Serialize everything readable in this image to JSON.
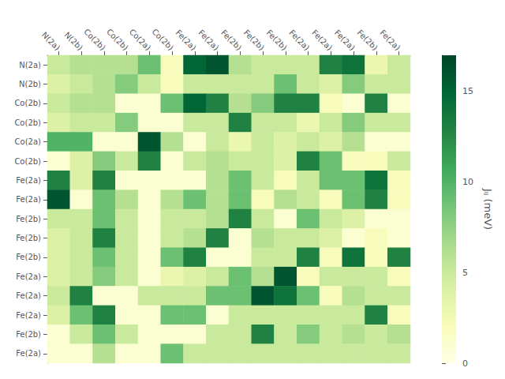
{
  "chart_data": {
    "type": "heatmap",
    "row_labels": [
      "N(2a)",
      "N(2b)",
      "Co(2b)",
      "Co(2b)",
      "Co(2a)",
      "Co(2b)",
      "Fe(2a)",
      "Fe(2a)",
      "Fe(2b)",
      "Fe(2b)",
      "Fe(2b)",
      "Fe(2a)",
      "Fe(2a)",
      "Fe(2a)",
      "Fe(2b)",
      "Fe(2a)"
    ],
    "col_labels": [
      "N(2a)",
      "N(2b)",
      "Co(2b)",
      "Co(2b)",
      "Co(2a)",
      "Co(2b)",
      "Fe(2a)",
      "Fe(2a)",
      "Fe(2b)",
      "Fe(2b)",
      "Fe(2b)",
      "Fe(2a)",
      "Fe(2a)",
      "Fe(2a)",
      "Fe(2b)",
      "Fe(2a)"
    ],
    "matrix": [
      [
        5,
        6,
        6,
        6,
        9,
        2,
        15,
        16,
        6,
        5,
        5,
        5,
        13,
        14,
        3,
        5
      ],
      [
        4,
        5,
        6,
        8,
        5,
        2,
        5,
        5,
        5,
        5,
        9,
        5,
        4,
        8,
        5,
        5
      ],
      [
        5,
        6,
        6,
        1,
        1,
        9,
        15,
        13,
        6,
        8,
        13,
        13,
        2,
        1,
        13,
        1
      ],
      [
        4,
        5,
        5,
        8,
        1,
        1,
        5,
        5,
        13,
        5,
        5,
        3,
        5,
        8,
        5,
        5
      ],
      [
        10,
        10,
        1,
        1,
        16,
        6,
        1,
        5,
        3,
        5,
        4,
        5,
        4,
        6,
        1,
        1
      ],
      [
        1,
        4,
        8,
        5,
        13,
        1,
        5,
        6,
        5,
        5,
        4,
        13,
        9,
        2,
        2,
        5
      ],
      [
        13,
        4,
        13,
        1,
        1,
        1,
        1,
        6,
        9,
        5,
        2,
        5,
        9,
        9,
        14,
        2
      ],
      [
        16,
        1,
        9,
        6,
        1,
        6,
        9,
        6,
        9,
        2,
        6,
        5,
        2,
        9,
        13,
        2
      ],
      [
        5,
        5,
        9,
        5,
        1,
        5,
        5,
        6,
        13,
        5,
        1,
        9,
        5,
        4,
        1,
        1
      ],
      [
        4,
        5,
        13,
        5,
        1,
        5,
        6,
        13,
        1,
        6,
        5,
        5,
        4,
        1,
        2,
        1
      ],
      [
        4,
        5,
        9,
        5,
        1,
        9,
        13,
        1,
        1,
        5,
        5,
        13,
        2,
        14,
        2,
        13
      ],
      [
        4,
        5,
        8,
        5,
        1,
        3,
        4,
        5,
        9,
        6,
        16,
        2,
        5,
        5,
        5,
        2
      ],
      [
        5,
        13,
        1,
        1,
        5,
        5,
        5,
        9,
        9,
        16,
        14,
        9,
        2,
        6,
        5,
        5
      ],
      [
        4,
        9,
        13,
        1,
        1,
        9,
        9,
        1,
        5,
        5,
        5,
        5,
        5,
        5,
        13,
        2
      ],
      [
        1,
        5,
        9,
        5,
        1,
        1,
        1,
        5,
        5,
        13,
        5,
        8,
        5,
        6,
        5,
        6
      ],
      [
        1,
        1,
        6,
        1,
        1,
        9,
        5,
        5,
        5,
        5,
        5,
        5,
        5,
        5,
        5,
        5
      ]
    ],
    "colorbar_label": "Jᵢⱼ (meV)",
    "colorbar_lim": [
      0,
      17
    ],
    "colorbar_ticks": [
      0,
      5,
      10,
      15
    ],
    "color": [
      "#ffffe5",
      "#f7fcb9",
      "#d9f0a3",
      "#addd8e",
      "#78c679",
      "#41ab5d",
      "#238443",
      "#006837",
      "#004529"
    ]
  }
}
